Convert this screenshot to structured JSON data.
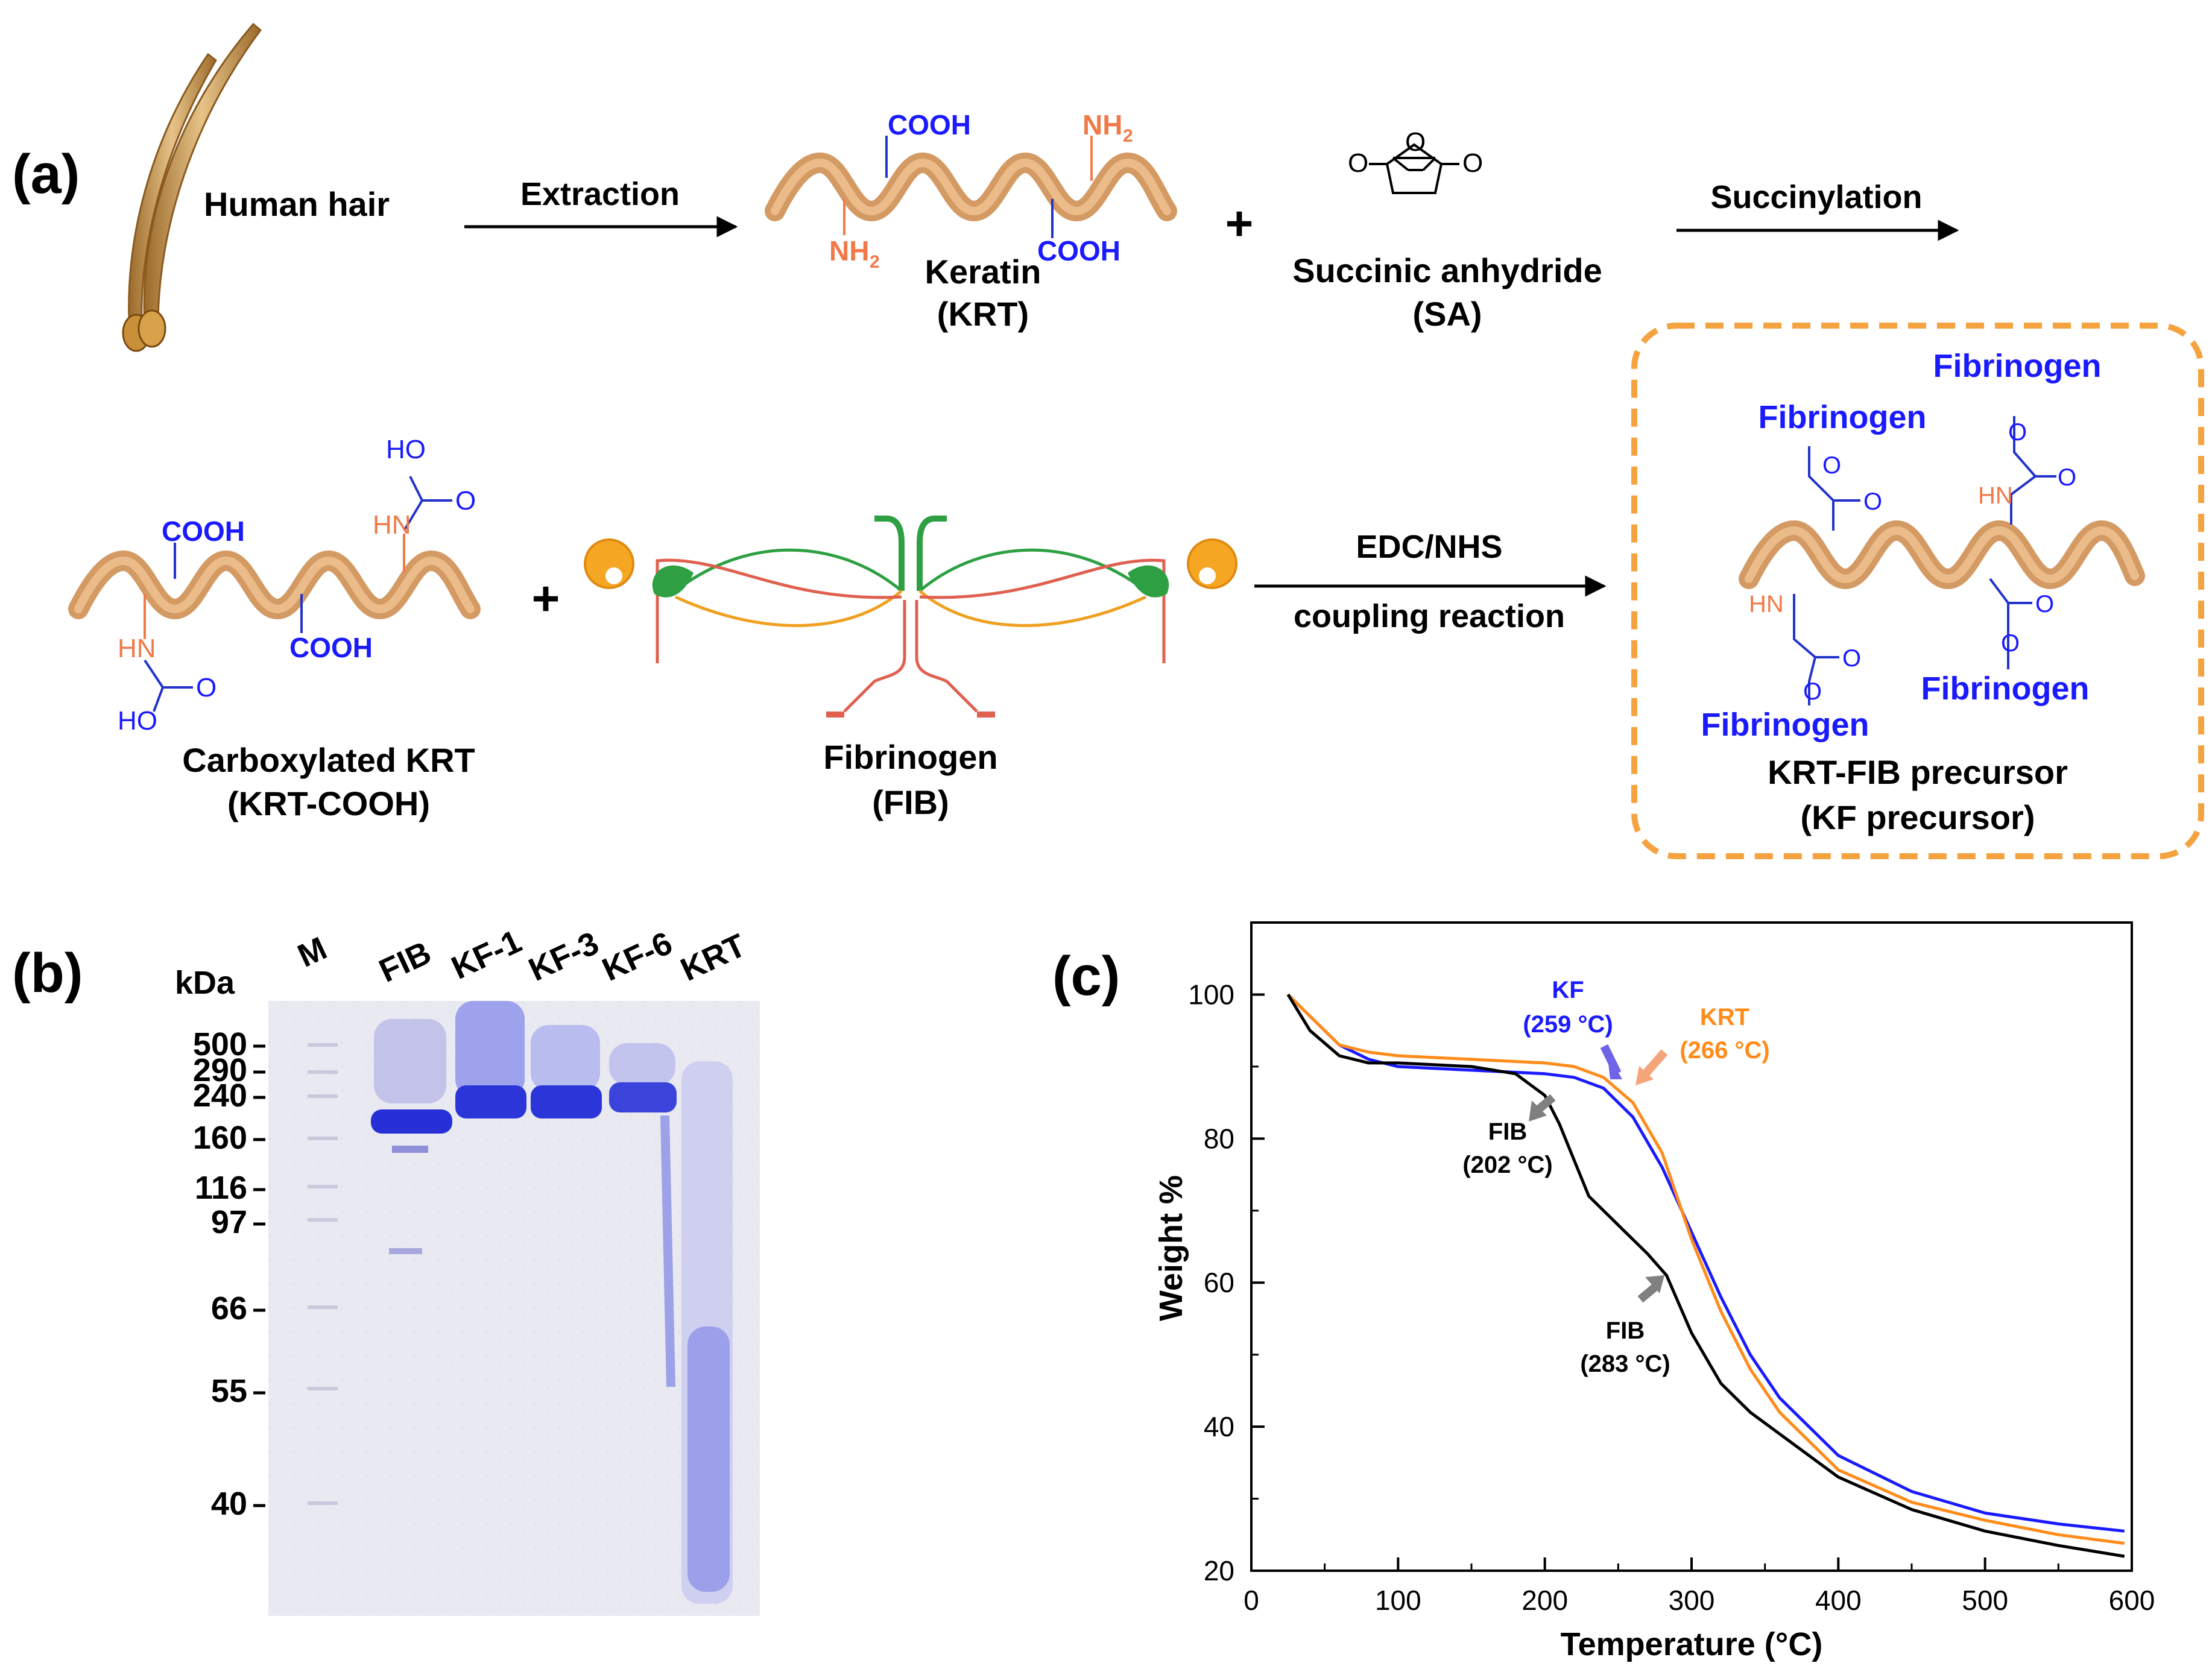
{
  "panel_a": {
    "label": "(a)",
    "human_hair": "Human hair",
    "extraction": "Extraction",
    "keratin_name": "Keratin",
    "keratin_abbr": "(KRT)",
    "cooh": "COOH",
    "nh2": "NH",
    "nh2_sub": "2",
    "plus": "+",
    "sa_name": "Succinic anhydride",
    "sa_abbr": "(SA)",
    "sa_o": "O",
    "succinylation": "Succinylation",
    "ho": "HO",
    "hn": "HN",
    "o": "O",
    "carboxylated_name": "Carboxylated KRT",
    "carboxylated_abbr": "(KRT-COOH)",
    "fib_name": "Fibrinogen",
    "fib_abbr": "(FIB)",
    "coupling_top": "EDC/NHS",
    "coupling_bottom": "coupling reaction",
    "fibrinogen_label": "Fibrinogen",
    "precursor_name": "KRT-FIB precursor",
    "precursor_abbr": "(KF precursor)"
  },
  "panel_b": {
    "label": "(b)",
    "unit": "kDa",
    "lanes": [
      "M",
      "FIB",
      "KF-1",
      "KF-3",
      "KF-6",
      "KRT"
    ],
    "markers": [
      "500",
      "290",
      "240",
      "160",
      "116",
      "97",
      "66",
      "55",
      "40"
    ]
  },
  "panel_c": {
    "label": "(c)",
    "annotations": {
      "kf_name": "KF",
      "kf_temp": "(259 °C)",
      "krt_name": "KRT",
      "krt_temp": "(266 °C)",
      "fib1_name": "FIB",
      "fib1_temp": "(202 °C)",
      "fib2_name": "FIB",
      "fib2_temp": "(283 °C)"
    },
    "colors": {
      "KF": "#1a1aff",
      "KRT": "#ff8c1a",
      "FIB": "#000000"
    }
  },
  "chart_data": {
    "type": "line",
    "xlabel": "Temperature (°C)",
    "ylabel": "Weight %",
    "xlim": [
      0,
      600
    ],
    "ylim": [
      20,
      110
    ],
    "xticks": [
      "0",
      "100",
      "200",
      "300",
      "400",
      "500",
      "600"
    ],
    "yticks": [
      "20",
      "40",
      "60",
      "80",
      "100"
    ],
    "series": [
      {
        "name": "KF",
        "color": "#1a1aff",
        "x": [
          25,
          40,
          60,
          80,
          100,
          150,
          200,
          220,
          240,
          260,
          280,
          300,
          320,
          340,
          360,
          400,
          450,
          500,
          550,
          595
        ],
        "y": [
          100,
          97,
          93,
          91,
          90,
          89.5,
          89,
          88.5,
          87,
          83,
          76,
          67,
          58,
          50,
          44,
          36,
          31,
          28,
          26.5,
          25.5
        ]
      },
      {
        "name": "KRT",
        "color": "#ff8c1a",
        "x": [
          25,
          40,
          60,
          80,
          100,
          150,
          200,
          220,
          240,
          260,
          280,
          300,
          320,
          340,
          360,
          400,
          450,
          500,
          550,
          595
        ],
        "y": [
          100,
          97,
          93,
          92,
          91.5,
          91,
          90.5,
          90,
          88.5,
          85,
          78,
          66,
          56,
          48,
          42,
          34,
          29.5,
          27,
          25,
          23.8
        ]
      },
      {
        "name": "FIB",
        "color": "#000000",
        "x": [
          25,
          40,
          60,
          80,
          100,
          150,
          180,
          200,
          210,
          220,
          230,
          250,
          270,
          283,
          300,
          320,
          340,
          360,
          400,
          450,
          500,
          550,
          595
        ],
        "y": [
          100,
          95,
          91.5,
          90.5,
          90.5,
          90,
          89,
          86,
          82,
          77,
          72,
          68,
          64,
          61,
          53,
          46,
          42,
          39,
          33,
          28.5,
          25.5,
          23.5,
          22
        ]
      }
    ]
  }
}
